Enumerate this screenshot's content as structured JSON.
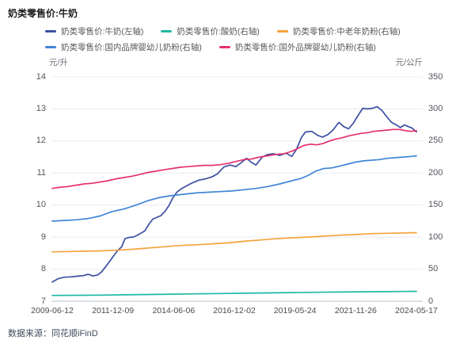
{
  "title": "奶类零售价:牛奶",
  "source": "数据来源：同花顺iFinD",
  "legend": {
    "rows": [
      [
        0,
        1,
        2
      ],
      [
        3,
        4
      ]
    ]
  },
  "chart_data": {
    "type": "line",
    "title": "奶类零售价:牛奶",
    "grid": true,
    "legend_position": "top",
    "x_axis": {
      "ticks": [
        "2009-06-12",
        "2011-12-09",
        "2014-06-06",
        "2016-12-02",
        "2019-05-24",
        "2021-11-26",
        "2024-05-17"
      ],
      "range_years": [
        2009.45,
        2024.38
      ]
    },
    "left_axis": {
      "unit": "元/升",
      "min": 7,
      "max": 14,
      "step": 1,
      "ticks": [
        14,
        13,
        12,
        11,
        10,
        9,
        8,
        7
      ]
    },
    "right_axis": {
      "unit": "元/公斤",
      "min": 0,
      "max": 350,
      "step": 50,
      "ticks": [
        350,
        300,
        250,
        200,
        150,
        100,
        50,
        0
      ]
    },
    "series": [
      {
        "name": "奶类零售价:牛奶(左轴)",
        "axis": "left",
        "color": "#3d4fa1",
        "points": [
          [
            2009.45,
            7.6
          ],
          [
            2009.68,
            7.7
          ],
          [
            2009.94,
            7.75
          ],
          [
            2010.2,
            7.76
          ],
          [
            2010.46,
            7.78
          ],
          [
            2010.73,
            7.8
          ],
          [
            2010.92,
            7.84
          ],
          [
            2011.12,
            7.79
          ],
          [
            2011.32,
            7.82
          ],
          [
            2011.48,
            7.92
          ],
          [
            2011.64,
            8.08
          ],
          [
            2011.81,
            8.25
          ],
          [
            2011.97,
            8.42
          ],
          [
            2012.13,
            8.58
          ],
          [
            2012.3,
            8.7
          ],
          [
            2012.43,
            8.95
          ],
          [
            2012.59,
            8.99
          ],
          [
            2012.76,
            9.0
          ],
          [
            2012.92,
            9.05
          ],
          [
            2013.08,
            9.12
          ],
          [
            2013.25,
            9.2
          ],
          [
            2013.41,
            9.4
          ],
          [
            2013.57,
            9.56
          ],
          [
            2013.74,
            9.62
          ],
          [
            2013.9,
            9.67
          ],
          [
            2014.07,
            9.8
          ],
          [
            2014.23,
            9.98
          ],
          [
            2014.39,
            10.22
          ],
          [
            2014.56,
            10.4
          ],
          [
            2014.72,
            10.5
          ],
          [
            2014.95,
            10.6
          ],
          [
            2015.21,
            10.7
          ],
          [
            2015.47,
            10.78
          ],
          [
            2015.74,
            10.82
          ],
          [
            2016.0,
            10.88
          ],
          [
            2016.23,
            10.98
          ],
          [
            2016.49,
            11.19
          ],
          [
            2016.75,
            11.25
          ],
          [
            2016.98,
            11.2
          ],
          [
            2017.21,
            11.33
          ],
          [
            2017.41,
            11.46
          ],
          [
            2017.6,
            11.34
          ],
          [
            2017.8,
            11.25
          ],
          [
            2018.06,
            11.5
          ],
          [
            2018.29,
            11.58
          ],
          [
            2018.52,
            11.6
          ],
          [
            2018.78,
            11.55
          ],
          [
            2019.04,
            11.62
          ],
          [
            2019.27,
            11.52
          ],
          [
            2019.47,
            11.75
          ],
          [
            2019.66,
            12.1
          ],
          [
            2019.83,
            12.28
          ],
          [
            2020.09,
            12.3
          ],
          [
            2020.32,
            12.18
          ],
          [
            2020.52,
            12.12
          ],
          [
            2020.75,
            12.2
          ],
          [
            2020.97,
            12.35
          ],
          [
            2021.2,
            12.58
          ],
          [
            2021.4,
            12.45
          ],
          [
            2021.6,
            12.38
          ],
          [
            2021.79,
            12.55
          ],
          [
            2021.99,
            12.8
          ],
          [
            2022.18,
            13.02
          ],
          [
            2022.38,
            13.0
          ],
          [
            2022.58,
            13.02
          ],
          [
            2022.77,
            13.07
          ],
          [
            2022.97,
            12.95
          ],
          [
            2023.17,
            12.75
          ],
          [
            2023.36,
            12.58
          ],
          [
            2023.56,
            12.5
          ],
          [
            2023.72,
            12.42
          ],
          [
            2023.89,
            12.5
          ],
          [
            2024.05,
            12.45
          ],
          [
            2024.21,
            12.4
          ],
          [
            2024.38,
            12.28
          ]
        ]
      },
      {
        "name": "奶类零售价:酸奶(右轴)",
        "axis": "right",
        "color": "#1fb9a5",
        "points": [
          [
            2009.45,
            9
          ],
          [
            2010.5,
            9.3
          ],
          [
            2011.4,
            9.5
          ],
          [
            2012.4,
            10
          ],
          [
            2013.4,
            10.5
          ],
          [
            2014.4,
            11
          ],
          [
            2015.3,
            11.5
          ],
          [
            2016.3,
            12
          ],
          [
            2017.3,
            12.5
          ],
          [
            2018.3,
            13
          ],
          [
            2019.3,
            13.5
          ],
          [
            2020.3,
            14
          ],
          [
            2021.2,
            14.3
          ],
          [
            2022.2,
            14.7
          ],
          [
            2023.2,
            15
          ],
          [
            2024.38,
            15.5
          ]
        ]
      },
      {
        "name": "奶类零售价:中老年奶粉(右轴)",
        "axis": "right",
        "color": "#f5a43d",
        "points": [
          [
            2009.45,
            77
          ],
          [
            2010.1,
            77.5
          ],
          [
            2010.76,
            78
          ],
          [
            2011.41,
            78.5
          ],
          [
            2012.07,
            79.5
          ],
          [
            2012.72,
            81
          ],
          [
            2013.38,
            83
          ],
          [
            2014.03,
            85
          ],
          [
            2014.69,
            87
          ],
          [
            2015.34,
            88
          ],
          [
            2016.0,
            89.5
          ],
          [
            2016.65,
            91
          ],
          [
            2017.31,
            93.5
          ],
          [
            2017.96,
            95.5
          ],
          [
            2018.62,
            97.5
          ],
          [
            2019.27,
            99
          ],
          [
            2019.93,
            100
          ],
          [
            2020.58,
            101.5
          ],
          [
            2021.24,
            103
          ],
          [
            2021.89,
            104
          ],
          [
            2022.54,
            105.5
          ],
          [
            2023.2,
            106
          ],
          [
            2023.85,
            106.5
          ],
          [
            2024.38,
            107
          ]
        ]
      },
      {
        "name": "奶类零售价:国内品牌婴幼儿奶粉(右轴)",
        "axis": "right",
        "color": "#4086d8",
        "points": [
          [
            2009.45,
            125
          ],
          [
            2009.94,
            126
          ],
          [
            2010.43,
            127
          ],
          [
            2010.92,
            129
          ],
          [
            2011.41,
            133
          ],
          [
            2011.91,
            140
          ],
          [
            2012.4,
            144
          ],
          [
            2012.89,
            150
          ],
          [
            2013.38,
            157
          ],
          [
            2013.87,
            162
          ],
          [
            2014.36,
            165
          ],
          [
            2014.85,
            167
          ],
          [
            2015.34,
            169
          ],
          [
            2015.83,
            170
          ],
          [
            2016.33,
            171
          ],
          [
            2016.82,
            172
          ],
          [
            2017.31,
            174
          ],
          [
            2017.8,
            176
          ],
          [
            2018.29,
            179
          ],
          [
            2018.78,
            183
          ],
          [
            2019.27,
            188
          ],
          [
            2019.6,
            191
          ],
          [
            2019.93,
            196
          ],
          [
            2020.25,
            203
          ],
          [
            2020.58,
            207
          ],
          [
            2020.91,
            208
          ],
          [
            2021.24,
            211
          ],
          [
            2021.56,
            214
          ],
          [
            2021.89,
            217
          ],
          [
            2022.22,
            219
          ],
          [
            2022.54,
            220
          ],
          [
            2022.87,
            221
          ],
          [
            2023.2,
            223
          ],
          [
            2023.53,
            224
          ],
          [
            2023.85,
            225
          ],
          [
            2024.18,
            226
          ],
          [
            2024.38,
            227
          ]
        ]
      },
      {
        "name": "奶类零售价:国外品牌婴幼儿奶粉(右轴)",
        "axis": "right",
        "color": "#e5326f",
        "points": [
          [
            2009.45,
            176
          ],
          [
            2009.78,
            178
          ],
          [
            2010.1,
            179
          ],
          [
            2010.43,
            181
          ],
          [
            2010.76,
            183
          ],
          [
            2011.09,
            184
          ],
          [
            2011.41,
            186
          ],
          [
            2011.74,
            188
          ],
          [
            2012.07,
            191
          ],
          [
            2012.4,
            193
          ],
          [
            2012.72,
            195
          ],
          [
            2013.05,
            198
          ],
          [
            2013.38,
            201
          ],
          [
            2013.71,
            203
          ],
          [
            2014.03,
            205
          ],
          [
            2014.36,
            207
          ],
          [
            2014.69,
            209
          ],
          [
            2015.02,
            210
          ],
          [
            2015.34,
            211
          ],
          [
            2015.67,
            212
          ],
          [
            2016.0,
            212
          ],
          [
            2016.33,
            213
          ],
          [
            2016.65,
            215
          ],
          [
            2016.98,
            218
          ],
          [
            2017.31,
            221
          ],
          [
            2017.63,
            222
          ],
          [
            2017.96,
            225
          ],
          [
            2018.29,
            227
          ],
          [
            2018.62,
            229
          ],
          [
            2018.94,
            230
          ],
          [
            2019.27,
            234
          ],
          [
            2019.5,
            238
          ],
          [
            2019.76,
            243
          ],
          [
            2020.03,
            245
          ],
          [
            2020.29,
            244
          ],
          [
            2020.55,
            246
          ],
          [
            2020.81,
            250
          ],
          [
            2021.07,
            253
          ],
          [
            2021.33,
            255
          ],
          [
            2021.6,
            258
          ],
          [
            2021.86,
            260
          ],
          [
            2022.12,
            262
          ],
          [
            2022.38,
            263
          ],
          [
            2022.64,
            265
          ],
          [
            2022.91,
            266
          ],
          [
            2023.17,
            267
          ],
          [
            2023.43,
            268
          ],
          [
            2023.69,
            268
          ],
          [
            2023.95,
            266
          ],
          [
            2024.15,
            265
          ],
          [
            2024.38,
            266
          ]
        ]
      }
    ],
    "colors": {
      "grid": "#ebecf4",
      "axis_line": "#bcc2cf"
    }
  }
}
